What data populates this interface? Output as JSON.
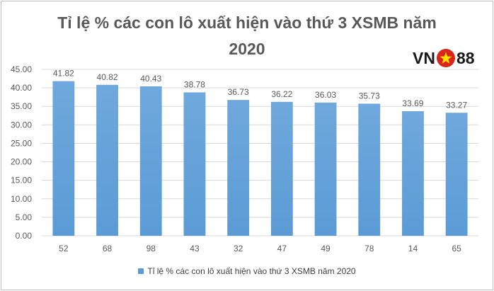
{
  "title_line1": "Tỉ lệ % các con lô xuất hiện vào thứ 3 XSMB năm",
  "title_line2": "2020",
  "logo": {
    "left": "VN",
    "right": "88",
    "icon": "vietnam-flag-star-icon"
  },
  "colors": {
    "bar": "#5b9bd5",
    "bar_light": "#6fa8dc",
    "grid": "#d9d9d9",
    "text": "#595959",
    "star_bg": "#da251d",
    "star": "#ffde00"
  },
  "chart_data": {
    "type": "bar",
    "title": "Tỉ lệ % các con lô xuất hiện vào thứ 3 XSMB năm 2020",
    "categories": [
      "52",
      "68",
      "98",
      "43",
      "32",
      "47",
      "49",
      "78",
      "14",
      "65"
    ],
    "series": [
      {
        "name": "Tỉ lệ % các con lô xuất hiện vào thứ 3 XSMB năm 2020",
        "values": [
          41.82,
          40.82,
          40.43,
          38.78,
          36.73,
          36.22,
          36.03,
          35.73,
          33.69,
          33.27
        ],
        "labels": [
          "41.82",
          "40.82",
          "40.43",
          "38.78",
          "36.73",
          "36.22",
          "36.03",
          "35.73",
          "33.69",
          "33.27"
        ]
      }
    ],
    "yticks": [
      "0.00",
      "5.00",
      "10.00",
      "15.00",
      "20.00",
      "25.00",
      "30.00",
      "35.00",
      "40.00",
      "45.00"
    ],
    "ylim": [
      0,
      45
    ],
    "grid": true,
    "legend": "bottom"
  }
}
